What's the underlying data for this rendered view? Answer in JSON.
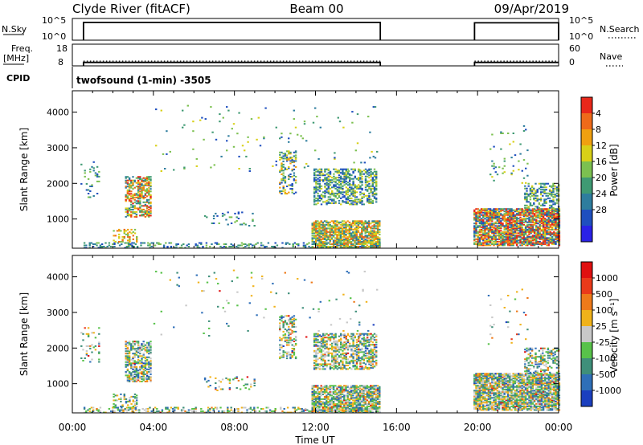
{
  "header": {
    "station": "Clyde River (fitACF)",
    "beam": "Beam 00",
    "date": "09/Apr/2019"
  },
  "chart_data": [
    {
      "type": "line",
      "name": "nsky-nsearch",
      "left_label": "N.Sky",
      "right_label": "N.Search",
      "left_ticks": [
        "10^5",
        "10^0"
      ],
      "right_ticks": [
        "10^5",
        "10^0"
      ],
      "segments": [
        {
          "x0": 0.55,
          "x1": 15.2,
          "level": 0.82
        },
        {
          "x0": 19.85,
          "x1": 24.0,
          "level": 0.8
        }
      ]
    },
    {
      "type": "line",
      "name": "freq-nave",
      "left_label_1": "Freq.",
      "left_label_2": "[MHz]",
      "right_label": "Nave",
      "left_ticks": [
        "18",
        "8"
      ],
      "right_ticks": [
        "60",
        "0"
      ],
      "cpid_label": "CPID",
      "cpid_text": "twofsound (1-min) -3505",
      "segments": [
        {
          "x0": 0.55,
          "x1": 15.2,
          "freq": 9.6,
          "nave": 13
        }
      ]
    },
    {
      "type": "heatmap",
      "name": "power",
      "ylabel": "Slant Range [km]",
      "yticks": [
        1000,
        2000,
        3000,
        4000
      ],
      "ylim": [
        180,
        4600
      ],
      "xlim": [
        0,
        24
      ],
      "colorbar_label": "Power [dB]",
      "colorbar_ticks": [
        "4",
        "8",
        "12",
        "16",
        "20",
        "24",
        "28"
      ],
      "colorbar_colors": [
        "#2a22e6",
        "#1f4fbf",
        "#2e7d9e",
        "#3f9a73",
        "#7cc050",
        "#d8d018",
        "#f0a010",
        "#ee6a1a",
        "#e8281a"
      ],
      "seed": 11
    },
    {
      "type": "heatmap",
      "name": "velocity",
      "ylabel": "Slant Range [km]",
      "yticks": [
        1000,
        2000,
        3000,
        4000
      ],
      "ylim": [
        180,
        4600
      ],
      "xlim": [
        0,
        24
      ],
      "colorbar_label": "Velocity [m s⁻¹]",
      "colorbar_ticks": [
        "1000",
        "500",
        "100",
        "25",
        "-25",
        "-100",
        "-500",
        "-1000"
      ],
      "colorbar_colors": [
        "#1b3fbf",
        "#2f6fb8",
        "#3f8f7a",
        "#58c24a",
        "#c8c8c8",
        "#f0b21a",
        "#ee7a1a",
        "#ea3a1a",
        "#e01010"
      ],
      "seed": 23
    }
  ],
  "xaxis": {
    "ticks": [
      0,
      4,
      8,
      12,
      16,
      20,
      24
    ],
    "tick_labels": [
      "00:00",
      "04:00",
      "08:00",
      "12:00",
      "16:00",
      "20:00",
      "00:00"
    ],
    "label": "Time UT"
  },
  "scatter_blobs": [
    {
      "t0": 0.55,
      "t1": 15.2,
      "r0": 180,
      "r1": 320,
      "density": 0.32,
      "pmin": 1,
      "pmax": 4
    },
    {
      "t0": 11.8,
      "t1": 15.15,
      "r0": 180,
      "r1": 950,
      "density": 0.75,
      "pmin": 2,
      "pmax": 7
    },
    {
      "t0": 2.6,
      "t1": 3.9,
      "r0": 1050,
      "r1": 2200,
      "density": 0.55,
      "pmin": 2,
      "pmax": 8
    },
    {
      "t0": 2.0,
      "t1": 3.2,
      "r0": 350,
      "r1": 700,
      "density": 0.35,
      "pmin": 4,
      "pmax": 7
    },
    {
      "t0": 10.2,
      "t1": 11.0,
      "r0": 1700,
      "r1": 2900,
      "density": 0.35,
      "pmin": 1,
      "pmax": 6
    },
    {
      "t0": 11.9,
      "t1": 15.0,
      "r0": 1400,
      "r1": 2400,
      "density": 0.5,
      "pmin": 1,
      "pmax": 5
    },
    {
      "t0": 19.8,
      "t1": 24.0,
      "r0": 250,
      "r1": 1300,
      "density": 0.8,
      "pmin": 1,
      "pmax": 9
    },
    {
      "t0": 22.3,
      "t1": 24.0,
      "r0": 1300,
      "r1": 2000,
      "density": 0.45,
      "pmin": 1,
      "pmax": 5
    },
    {
      "t0": 0.4,
      "t1": 1.3,
      "r0": 1600,
      "r1": 2600,
      "density": 0.12,
      "pmin": 1,
      "pmax": 4
    },
    {
      "t0": 6.5,
      "t1": 9.0,
      "r0": 800,
      "r1": 1200,
      "density": 0.12,
      "pmin": 1,
      "pmax": 4
    },
    {
      "t0": 4.0,
      "t1": 15.0,
      "r0": 2300,
      "r1": 4200,
      "density": 0.015,
      "pmin": 1,
      "pmax": 5
    },
    {
      "t0": 20.5,
      "t1": 22.5,
      "r0": 2000,
      "r1": 3700,
      "density": 0.03,
      "pmin": 1,
      "pmax": 5
    }
  ]
}
